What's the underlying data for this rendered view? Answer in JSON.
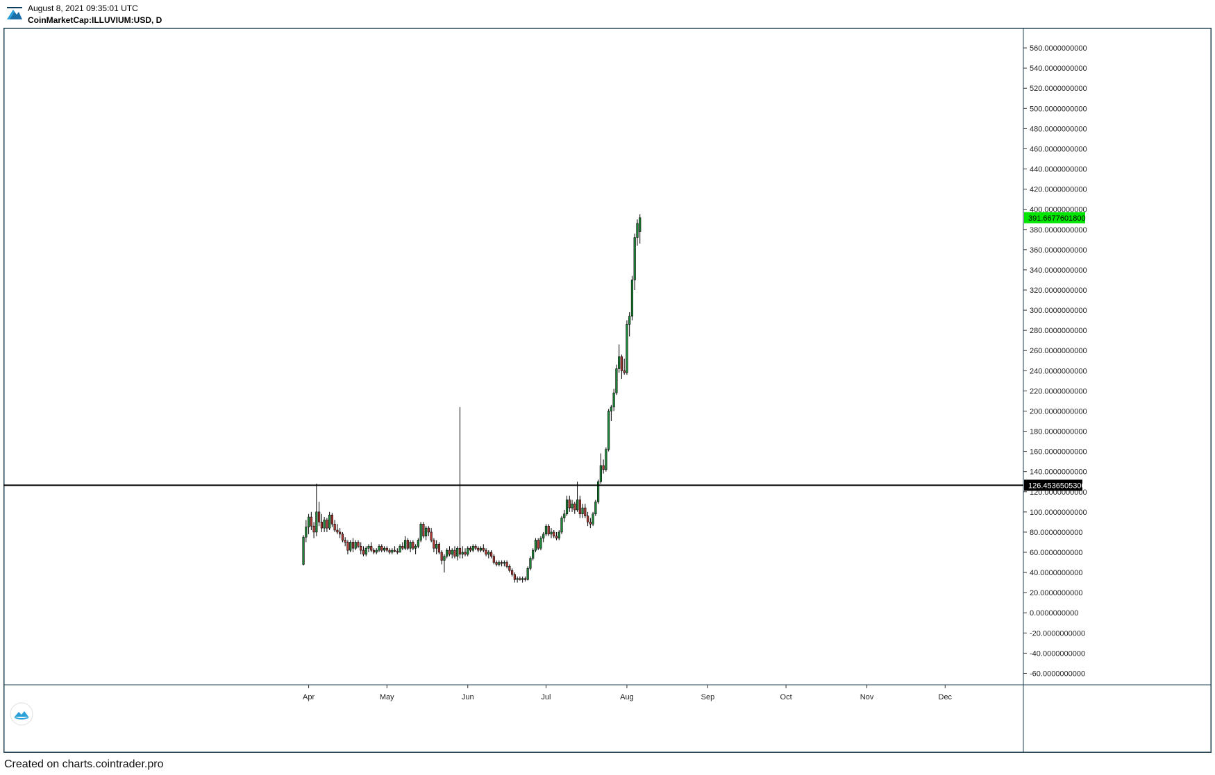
{
  "header": {
    "timestamp": "August 8, 2021 09:35:01 UTC",
    "symbol": "CoinMarketCap:ILLUVIUM:USD, D"
  },
  "footer": {
    "credit": "Created on charts.cointrader.pro"
  },
  "icons": {
    "logo": "cointrader-logo-icon",
    "watermark": "cointrader-watermark-icon"
  },
  "colors": {
    "up": "#1e8a3a",
    "down": "#b13a35",
    "last_price_badge": "#00e600",
    "hline_badge": "#000000"
  },
  "chart_data": {
    "type": "candlestick",
    "title": "",
    "ylim": [
      -70,
      580
    ],
    "y_ticks": [
      "560.0000000000",
      "540.0000000000",
      "520.0000000000",
      "500.0000000000",
      "480.0000000000",
      "460.0000000000",
      "440.0000000000",
      "420.0000000000",
      "400.0000000000",
      "380.0000000000",
      "360.0000000000",
      "340.0000000000",
      "320.0000000000",
      "300.0000000000",
      "280.0000000000",
      "260.0000000000",
      "240.0000000000",
      "220.0000000000",
      "200.0000000000",
      "180.0000000000",
      "160.0000000000",
      "140.0000000000",
      "120.0000000000",
      "100.0000000000",
      "80.0000000000",
      "60.0000000000",
      "40.0000000000",
      "20.0000000000",
      "0.0000000000",
      "-20.0000000000",
      "-40.0000000000",
      "-60.0000000000"
    ],
    "x_ticks": [
      {
        "label": "Apr",
        "date": "2021-04-01"
      },
      {
        "label": "May",
        "date": "2021-05-01"
      },
      {
        "label": "Jun",
        "date": "2021-06-01"
      },
      {
        "label": "Jul",
        "date": "2021-07-01"
      },
      {
        "label": "Aug",
        "date": "2021-08-01"
      },
      {
        "label": "Sep",
        "date": "2021-09-01"
      },
      {
        "label": "Oct",
        "date": "2021-10-01"
      },
      {
        "label": "Nov",
        "date": "2021-11-01"
      },
      {
        "label": "Dec",
        "date": "2021-12-01"
      }
    ],
    "xlim": [
      "2020-12-05",
      "2021-12-31"
    ],
    "horizontal_line": {
      "value": 126.45365053,
      "label": "126.4536505300"
    },
    "last_price": {
      "value": 391.66776018,
      "label": "391.6677601800"
    },
    "candles": [
      {
        "date": "2021-03-30",
        "o": 48,
        "h": 77,
        "l": 47,
        "c": 75
      },
      {
        "date": "2021-03-31",
        "o": 75,
        "h": 92,
        "l": 70,
        "c": 85
      },
      {
        "date": "2021-04-01",
        "o": 85,
        "h": 98,
        "l": 78,
        "c": 95
      },
      {
        "date": "2021-04-02",
        "o": 95,
        "h": 100,
        "l": 82,
        "c": 86
      },
      {
        "date": "2021-04-03",
        "o": 86,
        "h": 90,
        "l": 74,
        "c": 80
      },
      {
        "date": "2021-04-04",
        "o": 80,
        "h": 128,
        "l": 76,
        "c": 100
      },
      {
        "date": "2021-04-05",
        "o": 100,
        "h": 110,
        "l": 86,
        "c": 90
      },
      {
        "date": "2021-04-06",
        "o": 90,
        "h": 98,
        "l": 80,
        "c": 84
      },
      {
        "date": "2021-04-07",
        "o": 84,
        "h": 95,
        "l": 80,
        "c": 92
      },
      {
        "date": "2021-04-08",
        "o": 92,
        "h": 94,
        "l": 80,
        "c": 84
      },
      {
        "date": "2021-04-09",
        "o": 84,
        "h": 100,
        "l": 82,
        "c": 97
      },
      {
        "date": "2021-04-10",
        "o": 97,
        "h": 99,
        "l": 85,
        "c": 88
      },
      {
        "date": "2021-04-11",
        "o": 88,
        "h": 92,
        "l": 80,
        "c": 82
      },
      {
        "date": "2021-04-12",
        "o": 82,
        "h": 88,
        "l": 78,
        "c": 80
      },
      {
        "date": "2021-04-13",
        "o": 80,
        "h": 84,
        "l": 74,
        "c": 78
      },
      {
        "date": "2021-04-14",
        "o": 78,
        "h": 80,
        "l": 70,
        "c": 72
      },
      {
        "date": "2021-04-15",
        "o": 72,
        "h": 75,
        "l": 66,
        "c": 70
      },
      {
        "date": "2021-04-16",
        "o": 70,
        "h": 72,
        "l": 58,
        "c": 62
      },
      {
        "date": "2021-04-17",
        "o": 62,
        "h": 72,
        "l": 60,
        "c": 70
      },
      {
        "date": "2021-04-18",
        "o": 70,
        "h": 74,
        "l": 60,
        "c": 64
      },
      {
        "date": "2021-04-19",
        "o": 64,
        "h": 72,
        "l": 62,
        "c": 70
      },
      {
        "date": "2021-04-20",
        "o": 70,
        "h": 72,
        "l": 64,
        "c": 66
      },
      {
        "date": "2021-04-21",
        "o": 66,
        "h": 70,
        "l": 58,
        "c": 62
      },
      {
        "date": "2021-04-22",
        "o": 62,
        "h": 66,
        "l": 56,
        "c": 58
      },
      {
        "date": "2021-04-23",
        "o": 58,
        "h": 66,
        "l": 56,
        "c": 64
      },
      {
        "date": "2021-04-24",
        "o": 64,
        "h": 68,
        "l": 60,
        "c": 66
      },
      {
        "date": "2021-04-25",
        "o": 66,
        "h": 70,
        "l": 60,
        "c": 62
      },
      {
        "date": "2021-04-26",
        "o": 62,
        "h": 64,
        "l": 58,
        "c": 60
      },
      {
        "date": "2021-04-27",
        "o": 60,
        "h": 64,
        "l": 58,
        "c": 62
      },
      {
        "date": "2021-04-28",
        "o": 62,
        "h": 68,
        "l": 60,
        "c": 66
      },
      {
        "date": "2021-04-29",
        "o": 66,
        "h": 68,
        "l": 60,
        "c": 62
      },
      {
        "date": "2021-04-30",
        "o": 62,
        "h": 66,
        "l": 60,
        "c": 64
      },
      {
        "date": "2021-05-01",
        "o": 64,
        "h": 66,
        "l": 60,
        "c": 62
      },
      {
        "date": "2021-05-02",
        "o": 62,
        "h": 64,
        "l": 58,
        "c": 60
      },
      {
        "date": "2021-05-03",
        "o": 60,
        "h": 64,
        "l": 58,
        "c": 62
      },
      {
        "date": "2021-05-04",
        "o": 62,
        "h": 66,
        "l": 60,
        "c": 61
      },
      {
        "date": "2021-05-05",
        "o": 61,
        "h": 64,
        "l": 58,
        "c": 60
      },
      {
        "date": "2021-05-06",
        "o": 60,
        "h": 68,
        "l": 60,
        "c": 66
      },
      {
        "date": "2021-05-07",
        "o": 66,
        "h": 70,
        "l": 62,
        "c": 64
      },
      {
        "date": "2021-05-08",
        "o": 64,
        "h": 76,
        "l": 62,
        "c": 72
      },
      {
        "date": "2021-05-09",
        "o": 72,
        "h": 74,
        "l": 62,
        "c": 64
      },
      {
        "date": "2021-05-10",
        "o": 64,
        "h": 72,
        "l": 60,
        "c": 70
      },
      {
        "date": "2021-05-11",
        "o": 70,
        "h": 72,
        "l": 62,
        "c": 64
      },
      {
        "date": "2021-05-12",
        "o": 64,
        "h": 68,
        "l": 58,
        "c": 66
      },
      {
        "date": "2021-05-13",
        "o": 66,
        "h": 74,
        "l": 64,
        "c": 72
      },
      {
        "date": "2021-05-14",
        "o": 72,
        "h": 90,
        "l": 70,
        "c": 88
      },
      {
        "date": "2021-05-15",
        "o": 88,
        "h": 90,
        "l": 74,
        "c": 76
      },
      {
        "date": "2021-05-16",
        "o": 76,
        "h": 86,
        "l": 72,
        "c": 84
      },
      {
        "date": "2021-05-17",
        "o": 84,
        "h": 86,
        "l": 76,
        "c": 80
      },
      {
        "date": "2021-05-18",
        "o": 80,
        "h": 84,
        "l": 70,
        "c": 72
      },
      {
        "date": "2021-05-19",
        "o": 72,
        "h": 74,
        "l": 60,
        "c": 64
      },
      {
        "date": "2021-05-20",
        "o": 64,
        "h": 72,
        "l": 58,
        "c": 68
      },
      {
        "date": "2021-05-21",
        "o": 68,
        "h": 70,
        "l": 58,
        "c": 60
      },
      {
        "date": "2021-05-22",
        "o": 60,
        "h": 62,
        "l": 48,
        "c": 52
      },
      {
        "date": "2021-05-23",
        "o": 52,
        "h": 58,
        "l": 40,
        "c": 56
      },
      {
        "date": "2021-05-24",
        "o": 56,
        "h": 64,
        "l": 54,
        "c": 62
      },
      {
        "date": "2021-05-25",
        "o": 62,
        "h": 66,
        "l": 56,
        "c": 58
      },
      {
        "date": "2021-05-26",
        "o": 58,
        "h": 64,
        "l": 54,
        "c": 62
      },
      {
        "date": "2021-05-27",
        "o": 62,
        "h": 66,
        "l": 54,
        "c": 56
      },
      {
        "date": "2021-05-28",
        "o": 56,
        "h": 66,
        "l": 52,
        "c": 64
      },
      {
        "date": "2021-05-29",
        "o": 64,
        "h": 204,
        "l": 54,
        "c": 58
      },
      {
        "date": "2021-05-30",
        "o": 58,
        "h": 66,
        "l": 54,
        "c": 60
      },
      {
        "date": "2021-05-31",
        "o": 60,
        "h": 64,
        "l": 56,
        "c": 58
      },
      {
        "date": "2021-06-01",
        "o": 58,
        "h": 66,
        "l": 56,
        "c": 64
      },
      {
        "date": "2021-06-02",
        "o": 64,
        "h": 66,
        "l": 60,
        "c": 62
      },
      {
        "date": "2021-06-03",
        "o": 62,
        "h": 68,
        "l": 60,
        "c": 66
      },
      {
        "date": "2021-06-04",
        "o": 66,
        "h": 68,
        "l": 62,
        "c": 64
      },
      {
        "date": "2021-06-05",
        "o": 64,
        "h": 66,
        "l": 60,
        "c": 62
      },
      {
        "date": "2021-06-06",
        "o": 62,
        "h": 66,
        "l": 60,
        "c": 64
      },
      {
        "date": "2021-06-07",
        "o": 64,
        "h": 68,
        "l": 60,
        "c": 62
      },
      {
        "date": "2021-06-08",
        "o": 62,
        "h": 64,
        "l": 56,
        "c": 58
      },
      {
        "date": "2021-06-09",
        "o": 58,
        "h": 62,
        "l": 54,
        "c": 60
      },
      {
        "date": "2021-06-10",
        "o": 60,
        "h": 62,
        "l": 54,
        "c": 56
      },
      {
        "date": "2021-06-11",
        "o": 56,
        "h": 58,
        "l": 48,
        "c": 50
      },
      {
        "date": "2021-06-12",
        "o": 50,
        "h": 52,
        "l": 46,
        "c": 48
      },
      {
        "date": "2021-06-13",
        "o": 48,
        "h": 52,
        "l": 46,
        "c": 50
      },
      {
        "date": "2021-06-14",
        "o": 50,
        "h": 52,
        "l": 46,
        "c": 49
      },
      {
        "date": "2021-06-15",
        "o": 49,
        "h": 52,
        "l": 46,
        "c": 50
      },
      {
        "date": "2021-06-16",
        "o": 50,
        "h": 52,
        "l": 44,
        "c": 46
      },
      {
        "date": "2021-06-17",
        "o": 46,
        "h": 48,
        "l": 40,
        "c": 42
      },
      {
        "date": "2021-06-18",
        "o": 42,
        "h": 44,
        "l": 36,
        "c": 38
      },
      {
        "date": "2021-06-19",
        "o": 38,
        "h": 40,
        "l": 30,
        "c": 33
      },
      {
        "date": "2021-06-20",
        "o": 33,
        "h": 36,
        "l": 30,
        "c": 34
      },
      {
        "date": "2021-06-21",
        "o": 34,
        "h": 36,
        "l": 32,
        "c": 33
      },
      {
        "date": "2021-06-22",
        "o": 33,
        "h": 36,
        "l": 30,
        "c": 34
      },
      {
        "date": "2021-06-23",
        "o": 34,
        "h": 36,
        "l": 31,
        "c": 33
      },
      {
        "date": "2021-06-24",
        "o": 33,
        "h": 46,
        "l": 32,
        "c": 44
      },
      {
        "date": "2021-06-25",
        "o": 44,
        "h": 56,
        "l": 42,
        "c": 54
      },
      {
        "date": "2021-06-26",
        "o": 54,
        "h": 64,
        "l": 52,
        "c": 62
      },
      {
        "date": "2021-06-27",
        "o": 62,
        "h": 74,
        "l": 60,
        "c": 72
      },
      {
        "date": "2021-06-28",
        "o": 72,
        "h": 74,
        "l": 62,
        "c": 64
      },
      {
        "date": "2021-06-29",
        "o": 64,
        "h": 76,
        "l": 62,
        "c": 74
      },
      {
        "date": "2021-06-30",
        "o": 74,
        "h": 80,
        "l": 70,
        "c": 78
      },
      {
        "date": "2021-07-01",
        "o": 78,
        "h": 88,
        "l": 76,
        "c": 86
      },
      {
        "date": "2021-07-02",
        "o": 86,
        "h": 88,
        "l": 76,
        "c": 78
      },
      {
        "date": "2021-07-03",
        "o": 78,
        "h": 84,
        "l": 74,
        "c": 80
      },
      {
        "date": "2021-07-04",
        "o": 80,
        "h": 82,
        "l": 74,
        "c": 76
      },
      {
        "date": "2021-07-05",
        "o": 76,
        "h": 80,
        "l": 72,
        "c": 74
      },
      {
        "date": "2021-07-06",
        "o": 74,
        "h": 82,
        "l": 72,
        "c": 80
      },
      {
        "date": "2021-07-07",
        "o": 80,
        "h": 96,
        "l": 78,
        "c": 94
      },
      {
        "date": "2021-07-08",
        "o": 94,
        "h": 102,
        "l": 90,
        "c": 98
      },
      {
        "date": "2021-07-09",
        "o": 98,
        "h": 116,
        "l": 96,
        "c": 112
      },
      {
        "date": "2021-07-10",
        "o": 112,
        "h": 116,
        "l": 100,
        "c": 104
      },
      {
        "date": "2021-07-11",
        "o": 104,
        "h": 112,
        "l": 100,
        "c": 108
      },
      {
        "date": "2021-07-12",
        "o": 108,
        "h": 110,
        "l": 98,
        "c": 102
      },
      {
        "date": "2021-07-13",
        "o": 102,
        "h": 130,
        "l": 100,
        "c": 112
      },
      {
        "date": "2021-07-14",
        "o": 112,
        "h": 116,
        "l": 94,
        "c": 98
      },
      {
        "date": "2021-07-15",
        "o": 98,
        "h": 108,
        "l": 94,
        "c": 104
      },
      {
        "date": "2021-07-16",
        "o": 104,
        "h": 108,
        "l": 94,
        "c": 96
      },
      {
        "date": "2021-07-17",
        "o": 96,
        "h": 100,
        "l": 86,
        "c": 90
      },
      {
        "date": "2021-07-18",
        "o": 90,
        "h": 94,
        "l": 84,
        "c": 88
      },
      {
        "date": "2021-07-19",
        "o": 88,
        "h": 100,
        "l": 86,
        "c": 98
      },
      {
        "date": "2021-07-20",
        "o": 98,
        "h": 112,
        "l": 96,
        "c": 110
      },
      {
        "date": "2021-07-21",
        "o": 110,
        "h": 132,
        "l": 108,
        "c": 130
      },
      {
        "date": "2021-07-22",
        "o": 130,
        "h": 158,
        "l": 128,
        "c": 146
      },
      {
        "date": "2021-07-23",
        "o": 146,
        "h": 152,
        "l": 138,
        "c": 142
      },
      {
        "date": "2021-07-24",
        "o": 142,
        "h": 164,
        "l": 140,
        "c": 162
      },
      {
        "date": "2021-07-25",
        "o": 162,
        "h": 202,
        "l": 160,
        "c": 200
      },
      {
        "date": "2021-07-26",
        "o": 200,
        "h": 206,
        "l": 190,
        "c": 204
      },
      {
        "date": "2021-07-27",
        "o": 204,
        "h": 222,
        "l": 200,
        "c": 218
      },
      {
        "date": "2021-07-28",
        "o": 218,
        "h": 246,
        "l": 216,
        "c": 242
      },
      {
        "date": "2021-07-29",
        "o": 242,
        "h": 266,
        "l": 238,
        "c": 254
      },
      {
        "date": "2021-07-30",
        "o": 254,
        "h": 256,
        "l": 232,
        "c": 240
      },
      {
        "date": "2021-07-31",
        "o": 240,
        "h": 252,
        "l": 236,
        "c": 238
      },
      {
        "date": "2021-08-01",
        "o": 238,
        "h": 290,
        "l": 236,
        "c": 286
      },
      {
        "date": "2021-08-02",
        "o": 286,
        "h": 298,
        "l": 274,
        "c": 294
      },
      {
        "date": "2021-08-03",
        "o": 294,
        "h": 334,
        "l": 290,
        "c": 330
      },
      {
        "date": "2021-08-04",
        "o": 330,
        "h": 376,
        "l": 320,
        "c": 372
      },
      {
        "date": "2021-08-05",
        "o": 372,
        "h": 390,
        "l": 364,
        "c": 386
      },
      {
        "date": "2021-08-06",
        "o": 378,
        "h": 395,
        "l": 366,
        "c": 391.67
      }
    ]
  }
}
